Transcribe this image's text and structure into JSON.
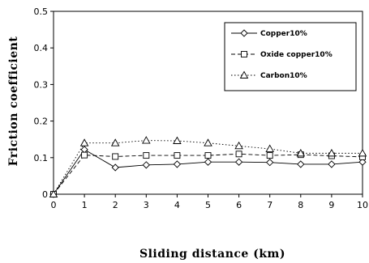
{
  "chart_data": {
    "type": "line",
    "xlabel": "Sliding distance (km)",
    "ylabel": "Friction coefficient",
    "x": [
      0,
      1,
      2,
      3,
      4,
      5,
      6,
      7,
      8,
      9,
      10
    ],
    "xlim": [
      0,
      10
    ],
    "ylim": [
      0,
      0.5
    ],
    "x_ticks": [
      "0",
      "1",
      "2",
      "3",
      "4",
      "5",
      "6",
      "7",
      "8",
      "9",
      "10"
    ],
    "y_ticks": [
      "0",
      "0.1",
      "0.2",
      "0.3",
      "0.4",
      "0.5"
    ],
    "grid": false,
    "legend_position": "top-right",
    "series": [
      {
        "name": "Copper10%",
        "marker": "diamond",
        "line": "solid",
        "values": [
          0,
          0.122,
          0.073,
          0.08,
          0.082,
          0.088,
          0.088,
          0.087,
          0.082,
          0.082,
          0.088
        ]
      },
      {
        "name": "Oxide copper10%",
        "marker": "square",
        "line": "dashed",
        "values": [
          0,
          0.107,
          0.103,
          0.106,
          0.106,
          0.106,
          0.11,
          0.106,
          0.108,
          0.105,
          0.102
        ]
      },
      {
        "name": "Carbon10%",
        "marker": "triangle",
        "line": "dotted",
        "values": [
          0,
          0.14,
          0.14,
          0.147,
          0.146,
          0.14,
          0.132,
          0.124,
          0.112,
          0.112,
          0.112
        ]
      }
    ]
  }
}
